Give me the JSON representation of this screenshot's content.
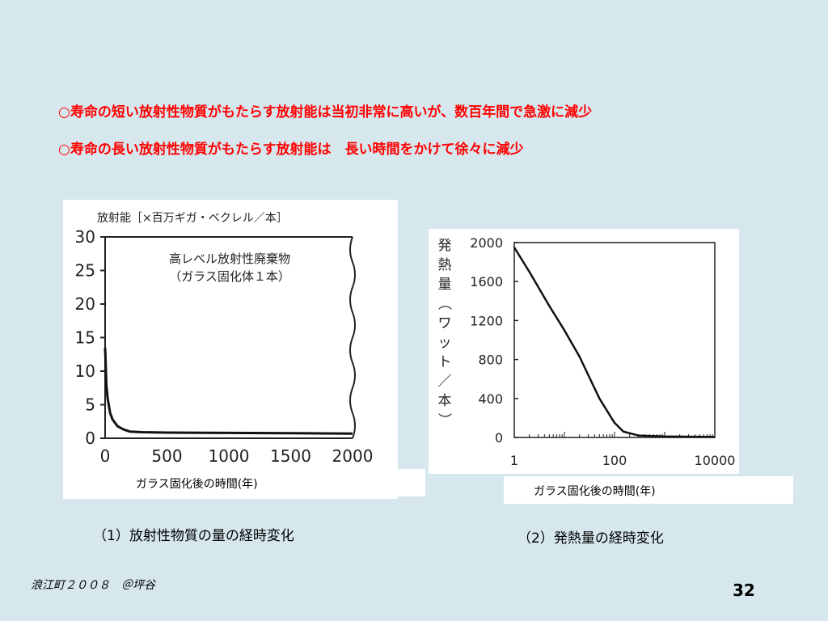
{
  "headlines": [
    "○寿命の短い放射性物質がもたらす放射能は当初非常に高いが、数百年間で急激に減少",
    "○寿命の長い放射性物質がもたらす放射能は　長い時間をかけて徐々に減少"
  ],
  "chart_data": [
    {
      "type": "line",
      "ylabel": "放射能［×百万ギガ・ベクレル／本］",
      "xlabel": "ガラス固化後の時間(年)",
      "annotation_lines": [
        "高レベル放射性廃棄物",
        "（ガラス固化体１本）"
      ],
      "xlim": [
        0,
        2000
      ],
      "ylim": [
        0,
        30
      ],
      "x_ticks": [
        "0",
        "500",
        "1000",
        "1500",
        "2000"
      ],
      "y_ticks": [
        "0",
        "5",
        "10",
        "15",
        "20",
        "25",
        "30"
      ],
      "series": [
        {
          "x": [
            0,
            10,
            20,
            40,
            60,
            100,
            150,
            200,
            300,
            500,
            1000,
            1500,
            2000
          ],
          "y": [
            13.5,
            8,
            6,
            3.8,
            2.8,
            1.8,
            1.3,
            1.0,
            0.9,
            0.85,
            0.8,
            0.75,
            0.7
          ]
        }
      ],
      "caption": "（1）放射性物質の量の経時変化"
    },
    {
      "type": "line",
      "ylabel": "発熱量（ワット／本）",
      "xlabel": "ガラス固化後の時間(年)",
      "x_scale": "log",
      "xlim": [
        1,
        10000
      ],
      "ylim": [
        0,
        2000
      ],
      "x_ticks": [
        "1",
        "100",
        "10000"
      ],
      "y_ticks": [
        "0",
        "400",
        "800",
        "1200",
        "1600",
        "2000"
      ],
      "series": [
        {
          "x": [
            1,
            2,
            5,
            10,
            20,
            50,
            100,
            150,
            300,
            1000,
            10000
          ],
          "y": [
            1950,
            1700,
            1350,
            1100,
            830,
            400,
            150,
            60,
            20,
            10,
            5
          ]
        }
      ],
      "caption": "（2）発熱量の経時変化"
    }
  ],
  "footer": {
    "credit": "浪江町２００８　＠坪谷",
    "page": "32"
  }
}
